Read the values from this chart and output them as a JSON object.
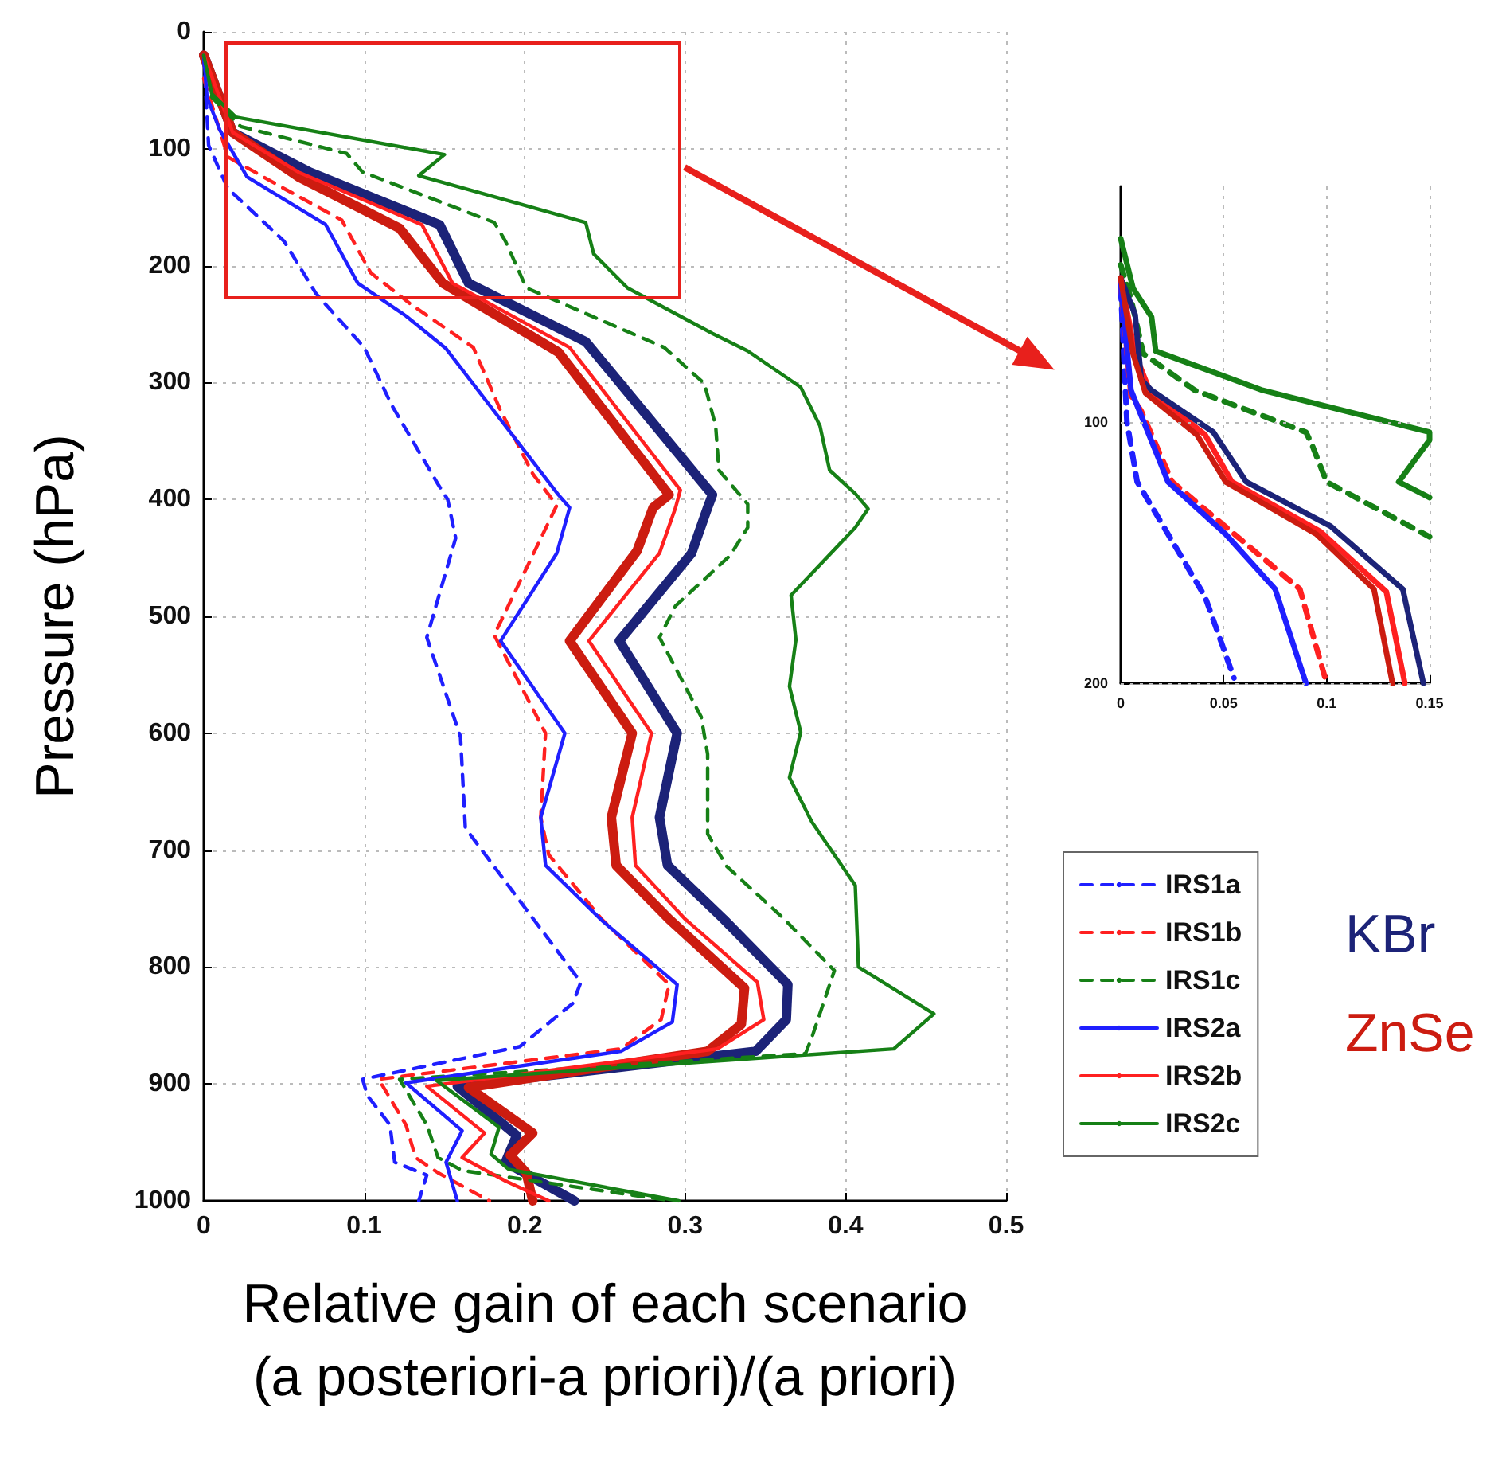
{
  "chart_data": [
    {
      "type": "line",
      "xlabel": "Relative gain of each scenario\n(a posteriori-a priori)/(a priori)",
      "ylabel": "Pressure (hPa)",
      "xlim": [
        0,
        0.5
      ],
      "xticks": [
        0,
        0.1,
        0.2,
        0.3,
        0.4,
        0.5
      ],
      "ylim": [
        1000,
        0
      ],
      "yticks": [
        0,
        100,
        200,
        300,
        400,
        500,
        600,
        700,
        800,
        900,
        1000
      ],
      "grid": true,
      "legend": "bottom right",
      "marker": "none",
      "annotations": [
        "KBr",
        "ZnSe"
      ],
      "series": [
        {
          "name": "IRS1a",
          "color": "#1f1fff",
          "line_style": "dashed",
          "x": [
            0,
            0.003,
            0.015,
            0.05,
            0.07,
            0.1,
            0.117,
            0.146,
            0.152,
            0.157,
            0.139,
            0.16,
            0.163,
            0.2,
            0.235,
            0.23,
            0.197,
            0.099,
            0.102,
            0.116,
            0.119,
            0.139,
            0.134
          ],
          "values": [
            20,
            97,
            134,
            179,
            224,
            270,
            319,
            387,
            400,
            433,
            518,
            603,
            681,
            749,
            813,
            831,
            868,
            896,
            910,
            935,
            967,
            978,
            1000
          ]
        },
        {
          "name": "IRS1b",
          "color": "#ff2020",
          "line_style": "dashed",
          "x": [
            0,
            0.015,
            0.05,
            0.086,
            0.104,
            0.129,
            0.168,
            0.185,
            0.205,
            0.22,
            0.181,
            0.213,
            0.21,
            0.215,
            0.248,
            0.29,
            0.285,
            0.26,
            0.109,
            0.126,
            0.132,
            0.146,
            0.178
          ],
          "values": [
            40,
            107,
            134,
            161,
            206,
            233,
            270,
            324,
            378,
            405,
            516,
            600,
            672,
            704,
            759,
            815,
            845,
            870,
            896,
            935,
            963,
            976,
            1000
          ]
        },
        {
          "name": "IRS1c",
          "color": "#168016",
          "line_style": "dashed",
          "x": [
            0,
            0.005,
            0.023,
            0.089,
            0.099,
            0.181,
            0.188,
            0.201,
            0.287,
            0.312,
            0.319,
            0.321,
            0.339,
            0.339,
            0.328,
            0.294,
            0.284,
            0.31,
            0.314,
            0.314,
            0.326,
            0.361,
            0.393,
            0.379,
            0.375,
            0.122,
            0.139,
            0.146,
            0.161,
            0.292
          ],
          "values": [
            20,
            56,
            81,
            104,
            120,
            163,
            179,
            219,
            270,
            301,
            337,
            375,
            404,
            424,
            448,
            491,
            518,
            586,
            618,
            686,
            714,
            758,
            803,
            860,
            874,
            896,
            935,
            963,
            974,
            1000
          ]
        },
        {
          "name": "IRS2a",
          "color": "#1f1fff",
          "line_style": "solid",
          "x": [
            0,
            0.002,
            0.01,
            0.027,
            0.076,
            0.096,
            0.126,
            0.151,
            0.221,
            0.228,
            0.22,
            0.185,
            0.225,
            0.21,
            0.213,
            0.248,
            0.295,
            0.292,
            0.26,
            0.126,
            0.161,
            0.151,
            0.158
          ],
          "values": [
            20,
            56,
            84,
            124,
            165,
            215,
            243,
            271,
            396,
            407,
            446,
            521,
            600,
            672,
            713,
            760,
            815,
            847,
            872,
            899,
            940,
            967,
            1000
          ]
        },
        {
          "name": "IRS2b",
          "color": "#ff2020",
          "line_style": "solid",
          "x": [
            0,
            0.018,
            0.059,
            0.136,
            0.155,
            0.228,
            0.297,
            0.294,
            0.284,
            0.24,
            0.279,
            0.267,
            0.269,
            0.3,
            0.345,
            0.349,
            0.32,
            0.139,
            0.175,
            0.161,
            0.188,
            0.215
          ],
          "values": [
            20,
            86,
            120,
            165,
            215,
            270,
            392,
            407,
            446,
            521,
            600,
            672,
            713,
            759,
            813,
            845,
            870,
            902,
            942,
            963,
            983,
            1000
          ]
        },
        {
          "name": "IRS2c",
          "color": "#168016",
          "line_style": "solid",
          "x": [
            0,
            0.005,
            0.02,
            0.15,
            0.134,
            0.238,
            0.243,
            0.264,
            0.317,
            0.339,
            0.372,
            0.384,
            0.39,
            0.406,
            0.414,
            0.406,
            0.366,
            0.369,
            0.365,
            0.372,
            0.365,
            0.379,
            0.406,
            0.408,
            0.455,
            0.43,
            0.145,
            0.184,
            0.179,
            0.19,
            0.296
          ],
          "values": [
            20,
            53,
            73,
            105,
            123,
            163,
            190,
            219,
            258,
            273,
            304,
            337,
            375,
            395,
            408,
            424,
            482,
            520,
            560,
            599,
            638,
            676,
            730,
            800,
            840,
            870,
            897,
            937,
            960,
            973,
            1000
          ]
        },
        {
          "color": "#1c2378",
          "line_style": "solid",
          "x": [
            0,
            0.018,
            0.066,
            0.147,
            0.165,
            0.238,
            0.317,
            0.314,
            0.304,
            0.259,
            0.295,
            0.284,
            0.289,
            0.324,
            0.364,
            0.363,
            0.344,
            0.158,
            0.195,
            0.188,
            0.231
          ],
          "values": [
            20,
            86,
            120,
            165,
            215,
            265,
            396,
            407,
            446,
            521,
            600,
            672,
            713,
            759,
            815,
            845,
            872,
            902,
            944,
            967,
            1000
          ]
        },
        {
          "color": "#cc1c10",
          "line_style": "solid",
          "x": [
            0,
            0.018,
            0.059,
            0.122,
            0.149,
            0.221,
            0.29,
            0.28,
            0.27,
            0.228,
            0.267,
            0.254,
            0.257,
            0.29,
            0.337,
            0.335,
            0.314,
            0.165,
            0.205,
            0.191,
            0.201,
            0.205
          ],
          "values": [
            20,
            86,
            124,
            168,
            215,
            274,
            396,
            407,
            444,
            521,
            600,
            672,
            713,
            759,
            818,
            849,
            872,
            903,
            942,
            961,
            976,
            1000
          ]
        }
      ]
    },
    {
      "type": "line",
      "xlim": [
        0,
        0.15
      ],
      "xticks": [
        0,
        0.05,
        0.1,
        0.15
      ],
      "ylim": [
        200,
        10
      ],
      "yticks": [
        100,
        200
      ],
      "grid": true,
      "marker": "none",
      "series": [
        {
          "color": "#1f1fff",
          "line_style": "dashed",
          "x": [
            0,
            0.003,
            0.008,
            0.041,
            0.055
          ],
          "values": [
            49,
            100,
            123,
            167,
            198
          ]
        },
        {
          "color": "#ff2020",
          "line_style": "dashed",
          "x": [
            0,
            0.005,
            0.01,
            0.025,
            0.087,
            0.1
          ],
          "values": [
            47,
            90,
            96,
            123,
            164,
            200
          ]
        },
        {
          "color": "#168016",
          "line_style": "dashed",
          "x": [
            0,
            0.005,
            0.011,
            0.036,
            0.09,
            0.093,
            0.1,
            0.15
          ],
          "values": [
            40,
            53,
            74,
            88,
            104,
            109,
            123,
            144
          ]
        },
        {
          "color": "#1f1fff",
          "line_style": "solid",
          "x": [
            0,
            0.005,
            0.023,
            0.051,
            0.075,
            0.09
          ],
          "values": [
            47,
            88,
            123,
            143,
            164,
            200
          ]
        },
        {
          "color": "#ff2020",
          "line_style": "solid",
          "x": [
            0,
            0.007,
            0.014,
            0.041,
            0.054,
            0.097,
            0.129,
            0.138
          ],
          "values": [
            45,
            74,
            88,
            105,
            123,
            142,
            165,
            200
          ]
        },
        {
          "color": "#168016",
          "line_style": "solid",
          "x": [
            0,
            0.006,
            0.015,
            0.017,
            0.069,
            0.15,
            0.15,
            0.135,
            0.15
          ],
          "values": [
            30,
            49,
            60,
            73,
            88,
            104,
            107,
            123,
            129
          ]
        },
        {
          "color": "#1c2378",
          "line_style": "solid",
          "x": [
            0,
            0.007,
            0.01,
            0.015,
            0.045,
            0.061,
            0.102,
            0.137,
            0.147
          ],
          "values": [
            45,
            59,
            84,
            88,
            104,
            123,
            140,
            164,
            200
          ]
        },
        {
          "color": "#cc1c10",
          "line_style": "solid",
          "x": [
            0,
            0.006,
            0.012,
            0.037,
            0.051,
            0.095,
            0.123,
            0.132
          ],
          "values": [
            45,
            74,
            89,
            105,
            123,
            143,
            164,
            200
          ]
        }
      ]
    }
  ]
}
